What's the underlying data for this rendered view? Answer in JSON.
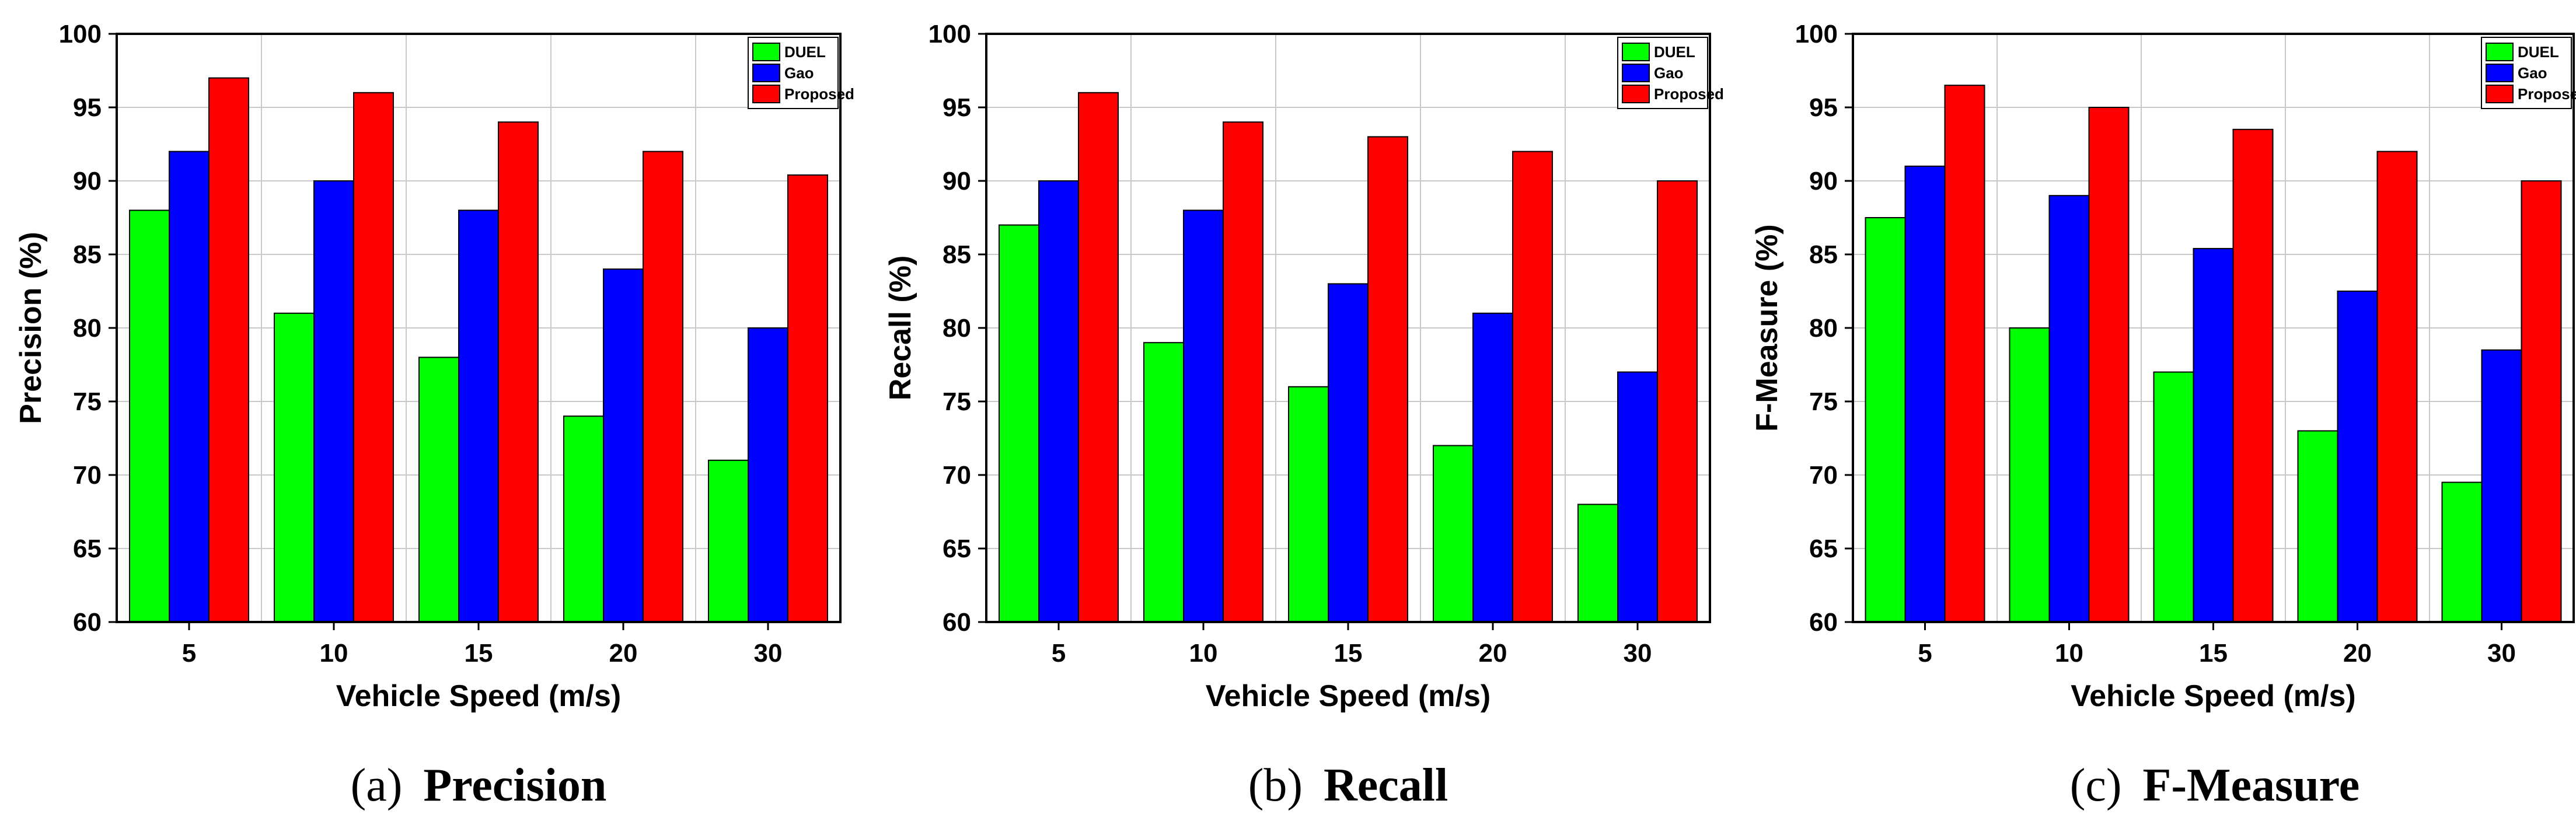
{
  "chart_data": [
    {
      "type": "bar",
      "caption_prefix": "(a)",
      "caption_title": "Precision",
      "categories": [
        "5",
        "10",
        "15",
        "20",
        "30"
      ],
      "series": [
        {
          "name": "DUEL",
          "color": "#00ff00",
          "values": [
            88,
            81,
            78,
            74,
            71
          ]
        },
        {
          "name": "Gao",
          "color": "#0000ff",
          "values": [
            92,
            90,
            88,
            84,
            80
          ]
        },
        {
          "name": "Proposed",
          "color": "#ff0000",
          "values": [
            97,
            96,
            94,
            92,
            90.4
          ]
        }
      ],
      "xlabel": "Vehicle Speed (m/s)",
      "ylabel": "Precision (%)",
      "ylim": [
        60,
        100
      ],
      "yticks": [
        "60",
        "65",
        "70",
        "75",
        "80",
        "85",
        "90",
        "95",
        "100"
      ],
      "grid": true,
      "legend": "top-right"
    },
    {
      "type": "bar",
      "caption_prefix": "(b)",
      "caption_title": "Recall",
      "categories": [
        "5",
        "10",
        "15",
        "20",
        "30"
      ],
      "series": [
        {
          "name": "DUEL",
          "color": "#00ff00",
          "values": [
            87,
            79,
            76,
            72,
            68
          ]
        },
        {
          "name": "Gao",
          "color": "#0000ff",
          "values": [
            90,
            88,
            83,
            81,
            77
          ]
        },
        {
          "name": "Proposed",
          "color": "#ff0000",
          "values": [
            96,
            94,
            93,
            92,
            90
          ]
        }
      ],
      "xlabel": "Vehicle Speed (m/s)",
      "ylabel": "Recall (%)",
      "ylim": [
        60,
        100
      ],
      "yticks": [
        "60",
        "65",
        "70",
        "75",
        "80",
        "85",
        "90",
        "95",
        "100"
      ],
      "grid": true,
      "legend": "top-right"
    },
    {
      "type": "bar",
      "caption_prefix": "(c)",
      "caption_title": "F-Measure",
      "categories": [
        "5",
        "10",
        "15",
        "20",
        "30"
      ],
      "series": [
        {
          "name": "DUEL",
          "color": "#00ff00",
          "values": [
            87.5,
            80,
            77,
            73,
            69.5
          ]
        },
        {
          "name": "Gao",
          "color": "#0000ff",
          "values": [
            91,
            89,
            85.4,
            82.5,
            78.5
          ]
        },
        {
          "name": "Proposed",
          "color": "#ff0000",
          "values": [
            96.5,
            95,
            93.5,
            92,
            90
          ]
        }
      ],
      "xlabel": "Vehicle Speed (m/s)",
      "ylabel": "F-Measure (%)",
      "ylim": [
        60,
        100
      ],
      "yticks": [
        "60",
        "65",
        "70",
        "75",
        "80",
        "85",
        "90",
        "95",
        "100"
      ],
      "grid": true,
      "legend": "top-right"
    }
  ]
}
